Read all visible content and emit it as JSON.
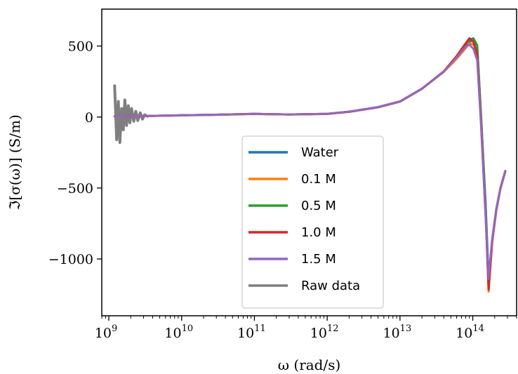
{
  "chart_data": {
    "type": "line",
    "xscale": "log",
    "xlim": [
      800000000.0,
      400000000000000.0
    ],
    "ylim": [
      -1400,
      760
    ],
    "xlabel": "ω (rad/s)",
    "ylabel": "ℑ[σ(ω)] (S/m)",
    "xticks": [
      {
        "value": 1000000000.0,
        "label": "10",
        "exp": "9"
      },
      {
        "value": 10000000000.0,
        "label": "10",
        "exp": "10"
      },
      {
        "value": 100000000000.0,
        "label": "10",
        "exp": "11"
      },
      {
        "value": 1000000000000.0,
        "label": "10",
        "exp": "12"
      },
      {
        "value": 10000000000000.0,
        "label": "10",
        "exp": "13"
      },
      {
        "value": 100000000000000.0,
        "label": "10",
        "exp": "14"
      }
    ],
    "yticks": [
      {
        "value": 500,
        "label": "500"
      },
      {
        "value": 0,
        "label": "0"
      },
      {
        "value": -500,
        "label": "−500"
      },
      {
        "value": -1000,
        "label": "−1000"
      }
    ],
    "grid": false,
    "legend_position": "lower-center",
    "series": [
      {
        "name": "Raw data",
        "color": "#7f7f7f",
        "x": [
          1200000000.0,
          1280000000.0,
          1350000000.0,
          1420000000.0,
          1500000000.0,
          1580000000.0,
          1660000000.0,
          1750000000.0,
          1850000000.0,
          1950000000.0,
          2050000000.0,
          2200000000.0,
          2350000000.0,
          2500000000.0,
          2700000000.0,
          2900000000.0,
          3100000000.0,
          3400000000.0
        ],
        "y": [
          220,
          -160,
          110,
          -180,
          60,
          -90,
          120,
          -60,
          80,
          -40,
          60,
          -30,
          40,
          -25,
          30,
          -15,
          15,
          5
        ]
      },
      {
        "name": "Water",
        "color": "#1f77b4",
        "x": [
          1200000000.0,
          2000000000.0,
          4000000000.0,
          10000000000.0,
          30000000000.0,
          100000000000.0,
          300000000000.0,
          1000000000000.0,
          2000000000000.0,
          5000000000000.0,
          10000000000000.0,
          20000000000000.0,
          40000000000000.0,
          60000000000000.0,
          80000000000000.0,
          90000000000000.0,
          102000000000000.0,
          115000000000000.0,
          130000000000000.0,
          150000000000000.0,
          165000000000000.0,
          185000000000000.0,
          210000000000000.0,
          240000000000000.0,
          280000000000000.0
        ],
        "y": [
          5,
          8,
          8,
          12,
          16,
          22,
          18,
          22,
          38,
          70,
          110,
          200,
          320,
          420,
          500,
          530,
          540,
          500,
          0,
          -600,
          -1130,
          -860,
          -650,
          -500,
          -380
        ]
      },
      {
        "name": "0.1 M",
        "color": "#ff7f0e",
        "x": [
          1200000000.0,
          2000000000.0,
          4000000000.0,
          10000000000.0,
          30000000000.0,
          100000000000.0,
          300000000000.0,
          1000000000000.0,
          2000000000000.0,
          5000000000000.0,
          10000000000000.0,
          20000000000000.0,
          40000000000000.0,
          60000000000000.0,
          80000000000000.0,
          90000000000000.0,
          102000000000000.0,
          115000000000000.0,
          130000000000000.0,
          150000000000000.0,
          165000000000000.0,
          185000000000000.0,
          210000000000000.0,
          240000000000000.0,
          280000000000000.0
        ],
        "y": [
          4,
          7,
          7,
          11,
          15,
          21,
          17,
          21,
          36,
          68,
          108,
          198,
          318,
          410,
          485,
          520,
          510,
          460,
          -20,
          -650,
          -1230,
          -880,
          -660,
          -505,
          -385
        ]
      },
      {
        "name": "0.5 M",
        "color": "#2ca02c",
        "x": [
          1200000000.0,
          2000000000.0,
          4000000000.0,
          10000000000.0,
          30000000000.0,
          100000000000.0,
          300000000000.0,
          1000000000000.0,
          2000000000000.0,
          5000000000000.0,
          10000000000000.0,
          20000000000000.0,
          40000000000000.0,
          60000000000000.0,
          80000000000000.0,
          90000000000000.0,
          102000000000000.0,
          115000000000000.0,
          130000000000000.0,
          150000000000000.0,
          165000000000000.0,
          185000000000000.0,
          210000000000000.0,
          240000000000000.0,
          280000000000000.0
        ],
        "y": [
          5,
          8,
          8,
          12,
          16,
          22,
          18,
          22,
          37,
          69,
          109,
          199,
          320,
          425,
          515,
          545,
          555,
          505,
          10,
          -620,
          -1200,
          -870,
          -655,
          -502,
          -382
        ]
      },
      {
        "name": "1.0 M",
        "color": "#d62728",
        "x": [
          1200000000.0,
          2000000000.0,
          4000000000.0,
          10000000000.0,
          30000000000.0,
          100000000000.0,
          300000000000.0,
          1000000000000.0,
          2000000000000.0,
          5000000000000.0,
          10000000000000.0,
          20000000000000.0,
          40000000000000.0,
          60000000000000.0,
          80000000000000.0,
          90000000000000.0,
          102000000000000.0,
          115000000000000.0,
          130000000000000.0,
          150000000000000.0,
          165000000000000.0,
          185000000000000.0,
          210000000000000.0,
          240000000000000.0,
          280000000000000.0
        ],
        "y": [
          5,
          8,
          8,
          12,
          16,
          22,
          18,
          22,
          37,
          69,
          109,
          199,
          322,
          430,
          520,
          555,
          530,
          440,
          -40,
          -680,
          -1215,
          -875,
          -658,
          -503,
          -383
        ]
      },
      {
        "name": "1.5 M",
        "color": "#9467bd",
        "x": [
          1200000000.0,
          2000000000.0,
          4000000000.0,
          10000000000.0,
          30000000000.0,
          100000000000.0,
          300000000000.0,
          1000000000000.0,
          2000000000000.0,
          5000000000000.0,
          10000000000000.0,
          20000000000000.0,
          40000000000000.0,
          60000000000000.0,
          80000000000000.0,
          90000000000000.0,
          102000000000000.0,
          115000000000000.0,
          130000000000000.0,
          150000000000000.0,
          165000000000000.0,
          185000000000000.0,
          210000000000000.0,
          240000000000000.0,
          280000000000000.0
        ],
        "y": [
          5,
          8,
          8,
          12,
          16,
          22,
          18,
          22,
          38,
          70,
          110,
          200,
          320,
          420,
          495,
          510,
          480,
          400,
          -60,
          -700,
          -1140,
          -860,
          -650,
          -500,
          -380
        ]
      }
    ],
    "legend": [
      "Water",
      "0.1 M",
      "0.5 M",
      "1.0 M",
      "1.5 M",
      "Raw data"
    ]
  }
}
